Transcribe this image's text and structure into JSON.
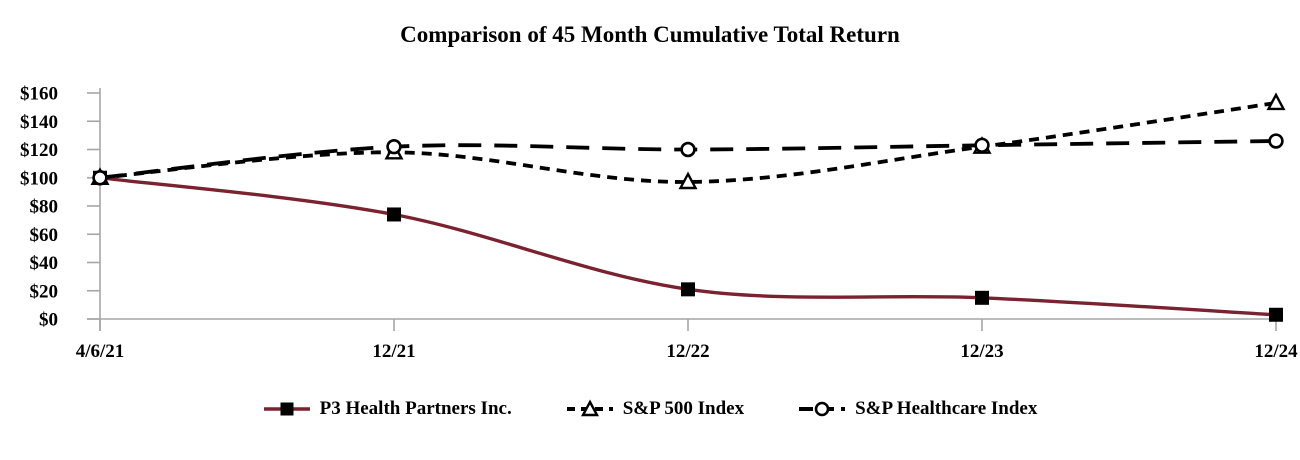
{
  "chart_data": {
    "type": "line",
    "title": "Comparison of 45 Month Cumulative Total Return",
    "categories": [
      "4/6/21",
      "12/21",
      "12/22",
      "12/23",
      "12/24"
    ],
    "series": [
      {
        "name": "P3 Health Partners Inc.",
        "values": [
          100,
          74,
          21,
          15,
          3
        ],
        "color": "#7a2230",
        "line_style": "solid",
        "marker": "square",
        "marker_fill": "#000000",
        "marker_stroke": "#000000"
      },
      {
        "name": "S&P 500 Index",
        "values": [
          100,
          118,
          97,
          122,
          153
        ],
        "color": "#000000",
        "line_style": "short-dash",
        "marker": "triangle",
        "marker_fill": "#ffffff",
        "marker_stroke": "#000000"
      },
      {
        "name": "S&P Healthcare Index",
        "values": [
          100,
          122,
          120,
          123,
          126
        ],
        "color": "#000000",
        "line_style": "long-dash",
        "marker": "circle",
        "marker_fill": "#ffffff",
        "marker_stroke": "#000000"
      }
    ],
    "xlabel": "",
    "ylabel": "",
    "ylim": [
      0,
      160
    ],
    "y_tick_step": 20,
    "y_tick_labels": [
      "$0",
      "$20",
      "$40",
      "$60",
      "$80",
      "$100",
      "$120",
      "$140",
      "$160"
    ],
    "x_tick_labels": [
      "4/6/21",
      "12/21",
      "12/22",
      "12/23",
      "12/24"
    ],
    "grid": false,
    "legend_position": "bottom",
    "axis_color": "#a6a6a6",
    "text_color": "#000000"
  },
  "legend": {
    "items": [
      {
        "label": "P3 Health Partners Inc."
      },
      {
        "label": "S&P 500 Index"
      },
      {
        "label": "S&P Healthcare Index"
      }
    ]
  }
}
